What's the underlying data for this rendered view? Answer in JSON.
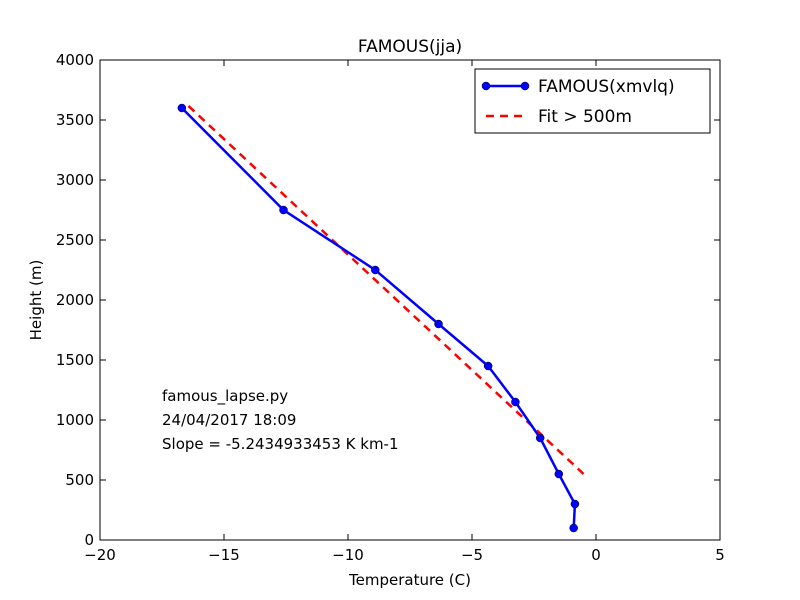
{
  "chart_data": {
    "type": "line",
    "title": "FAMOUS(jja)",
    "xlabel": "Temperature (C)",
    "ylabel": "Height (m)",
    "xlim": [
      -20,
      5
    ],
    "ylim": [
      0,
      4000
    ],
    "xticks": [
      -20,
      -15,
      -10,
      -5,
      0,
      5
    ],
    "xtick_labels": [
      "−20",
      "−15",
      "−10",
      "−5",
      "0",
      "5"
    ],
    "yticks": [
      0,
      500,
      1000,
      1500,
      2000,
      2500,
      3000,
      3500,
      4000
    ],
    "ytick_labels": [
      "0",
      "500",
      "1000",
      "1500",
      "2000",
      "2500",
      "3000",
      "3500",
      "4000"
    ],
    "grid": false,
    "legend_position": "top-right",
    "series": [
      {
        "name": "FAMOUS(xmvlq)",
        "style": "solid-with-markers",
        "color": "#0000ff",
        "x": [
          -0.9,
          -0.85,
          -1.5,
          -2.25,
          -3.25,
          -4.35,
          -6.35,
          -8.9,
          -12.6,
          -16.7
        ],
        "y": [
          100,
          300,
          550,
          850,
          1150,
          1450,
          1800,
          2250,
          2750,
          3600
        ]
      },
      {
        "name": "Fit > 500m",
        "style": "dashed",
        "color": "#ff0000",
        "x": [
          -0.5,
          -16.5
        ],
        "y": [
          550,
          3630
        ]
      }
    ],
    "annotations": [
      "famous_lapse.py",
      "24/04/2017 18:09",
      "Slope = -5.2434933453 K km-1"
    ]
  }
}
